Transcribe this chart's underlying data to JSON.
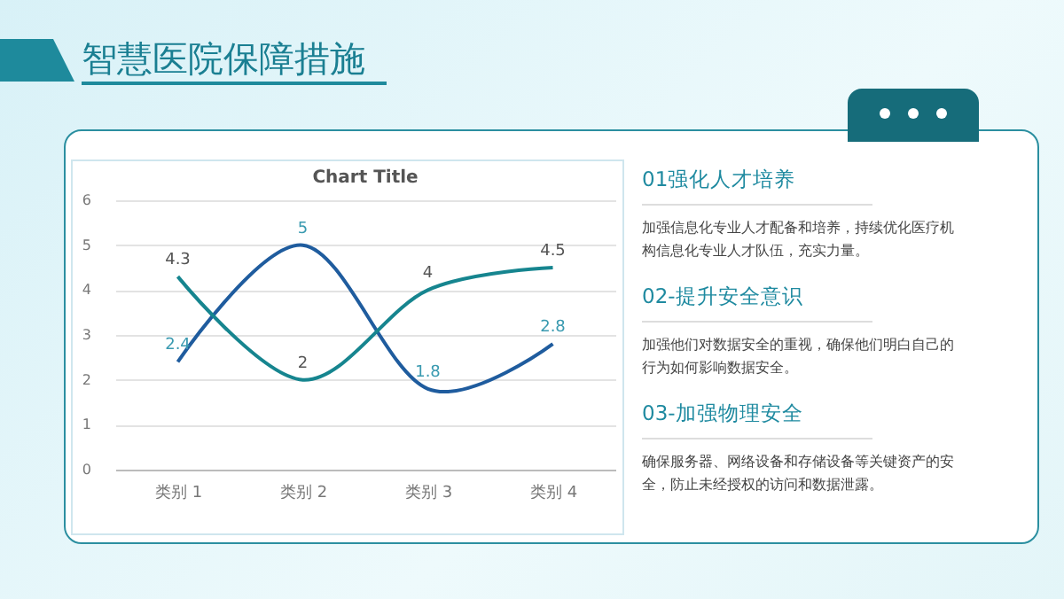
{
  "chart_data": {
    "type": "line",
    "title": "Chart Title",
    "categories": [
      "类别 1",
      "类别 2",
      "类别 3",
      "类别 4"
    ],
    "series": [
      {
        "color": "#1f5c9e",
        "values": [
          2.4,
          5,
          1.8,
          2.8
        ]
      },
      {
        "color": "#16858f",
        "values": [
          4.3,
          2,
          4,
          4.5
        ]
      }
    ],
    "ylim": [
      0,
      6
    ],
    "yticks": [
      0,
      1,
      2,
      3,
      4,
      5,
      6
    ],
    "grid": "y",
    "data_labels": true,
    "legend": false,
    "marker": "none",
    "line_style": "solid",
    "annotations": [
      "智慧医院保障措施",
      "01强化人才培养",
      "加强信息化专业人才配备和培养，持续优化医疗机构信息化专业人才队伍，充实力量。",
      "02-提升安全意识",
      "加强他们对数据安全的重视，确保他们明白自己的行为如何影响数据安全。",
      "03-加强物理安全",
      "确保服务器、网络设备和存储设备等关键资产的安全，防止未经授权的访问和数据泄露。"
    ]
  }
}
